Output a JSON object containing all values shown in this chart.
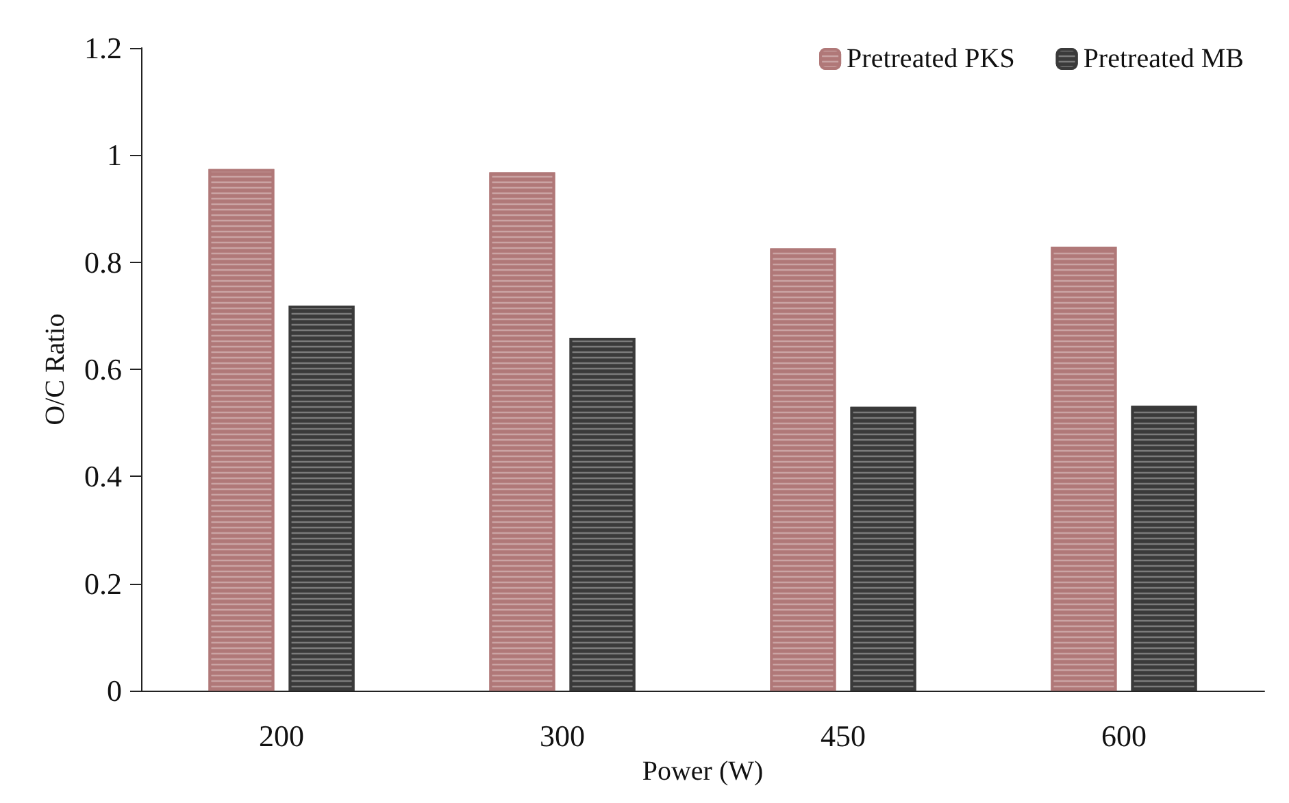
{
  "chart_data": {
    "type": "bar",
    "xlabel": "Power (W)",
    "ylabel": "O/C Ratio",
    "categories": [
      "200",
      "300",
      "450",
      "600"
    ],
    "series": [
      {
        "name": "Pretreated PKS",
        "color": "#b07878",
        "values": [
          0.974,
          0.968,
          0.826,
          0.829
        ]
      },
      {
        "name": "Pretreated MB",
        "color": "#3a3a3a",
        "values": [
          0.719,
          0.659,
          0.53,
          0.532
        ]
      }
    ],
    "ylim": [
      0,
      1.2
    ],
    "yticks": [
      0,
      0.2,
      0.4,
      0.6,
      0.8,
      1,
      1.2
    ],
    "grid": false,
    "legend": "top right"
  }
}
